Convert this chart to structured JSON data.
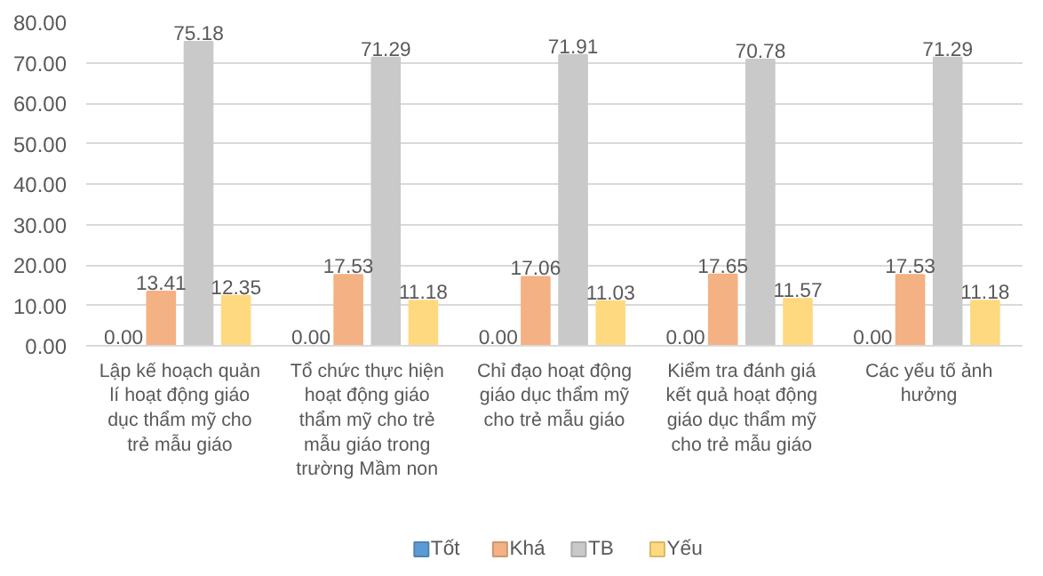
{
  "chart_data": {
    "type": "bar",
    "categories": [
      "Lập kế hoạch quản lí hoạt động giáo dục thẩm mỹ cho trẻ mẫu giáo",
      "Tổ chức thực hiện hoạt động giáo thẩm mỹ cho trẻ mẫu giáo trong trường Mầm non",
      "Chỉ đạo hoạt động giáo dục thẩm mỹ cho trẻ mẫu giáo",
      "Kiểm tra đánh giá kết quả hoạt động giáo dục thẩm mỹ cho trẻ mẫu giáo",
      "Các yếu tố ảnh hưởng"
    ],
    "series": [
      {
        "name": "Tốt",
        "color": "#5b9bd5",
        "values": [
          0,
          0,
          0,
          0,
          0
        ],
        "value_labels": [
          "0.00",
          "0.00",
          "0.00",
          "0.00",
          "0.00"
        ]
      },
      {
        "name": "Khá",
        "color": "#f4b183",
        "values": [
          13.41,
          17.53,
          17.06,
          17.65,
          17.53
        ],
        "value_labels": [
          "13.41",
          "17.53",
          "17.06",
          "17.65",
          "17.53"
        ]
      },
      {
        "name": "TB",
        "color": "#c9c9c9",
        "values": [
          75.18,
          71.29,
          71.91,
          70.78,
          71.29
        ],
        "value_labels": [
          "75.18",
          "71.29",
          "71.91",
          "70.78",
          "71.29"
        ]
      },
      {
        "name": "Yếu",
        "color": "#ffd97f",
        "values": [
          12.35,
          11.18,
          11.03,
          11.57,
          11.18
        ],
        "value_labels": [
          "12.35",
          "11.18",
          "11.03",
          "11.57",
          "11.18"
        ]
      }
    ],
    "ylim": [
      0,
      80
    ],
    "yticks": [
      {
        "value": 0,
        "label": "0.00"
      },
      {
        "value": 10,
        "label": "10.00"
      },
      {
        "value": 20,
        "label": "20.00"
      },
      {
        "value": 30,
        "label": "30.00"
      },
      {
        "value": 40,
        "label": "40.00"
      },
      {
        "value": 50,
        "label": "50.00"
      },
      {
        "value": 60,
        "label": "60.00"
      },
      {
        "value": 70,
        "label": "70.00"
      },
      {
        "value": 80,
        "label": "80.00"
      }
    ],
    "grid": "y",
    "legend": "bottom"
  }
}
